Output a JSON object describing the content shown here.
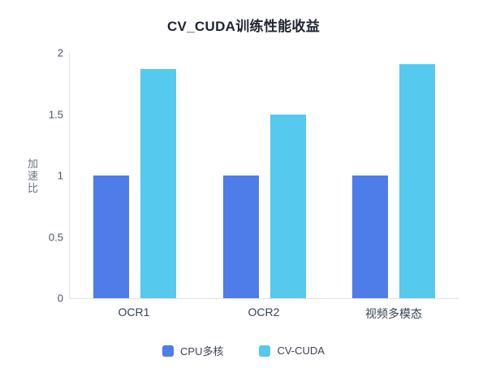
{
  "chart_data": {
    "type": "bar",
    "title": "CV_CUDA训练性能收益",
    "xlabel": "",
    "ylabel": "加速比",
    "categories": [
      "OCR1",
      "OCR2",
      "视频多模态"
    ],
    "series": [
      {
        "key": "cpu-multicore",
        "name": "CPU多核",
        "color": "#4e7ce8",
        "values": [
          1,
          1,
          1
        ]
      },
      {
        "key": "cv-cuda",
        "name": "CV-CUDA",
        "color": "#55c9ee",
        "values": [
          1.87,
          1.5,
          1.91
        ]
      }
    ],
    "ylim": [
      0,
      2
    ],
    "yticks": [
      0,
      0.5,
      1,
      1.5,
      2
    ],
    "grid": false,
    "legend_position": "bottom"
  },
  "colors": {
    "background": "#ffffff",
    "axis_line": "#dde2ec",
    "tick_label": "#4b5563",
    "title": "#1f2430"
  }
}
